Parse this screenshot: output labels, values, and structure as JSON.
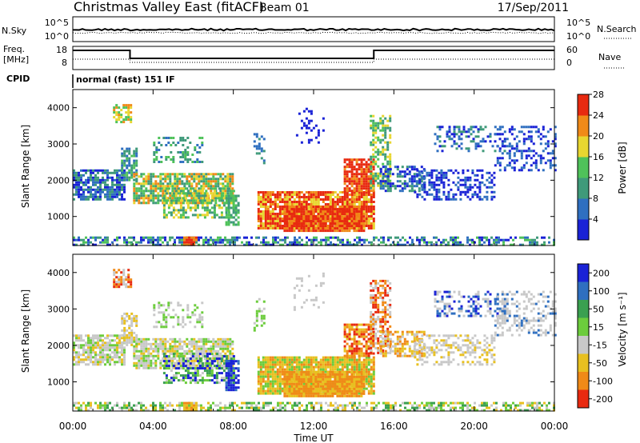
{
  "header": {
    "title": "Christmas Valley East (fitACF)",
    "beam": "Beam 01",
    "date": "17/Sep/2011"
  },
  "noise_panel": {
    "left_label": "N.Sky",
    "right_label": "N.Search",
    "left_ticks": [
      "10^5",
      "10^0"
    ],
    "right_ticks": [
      "10^5",
      "10^0"
    ]
  },
  "freq_panel": {
    "left_label_1": "Freq.",
    "left_label_2": "[MHz]",
    "right_label": "Nave",
    "left_ticks": [
      "18",
      "8"
    ],
    "right_ticks": [
      "60",
      "0"
    ]
  },
  "cpid": {
    "label": "CPID",
    "text": "normal (fast) 151 IF"
  },
  "chart_data": [
    {
      "type": "heatmap",
      "name": "power",
      "ylabel": "Slant Range [km]",
      "yticks": [
        1000,
        2000,
        3000,
        4000
      ],
      "ylim": [
        200,
        4500
      ],
      "xlim_hours": [
        0,
        24
      ],
      "colorbar_label": "Power [dB]",
      "colorbar_ticks": [
        "4",
        "8",
        "12",
        "16",
        "20",
        "24",
        "28"
      ],
      "colors": [
        "#1a22d6",
        "#2f6fc0",
        "#3f9a7a",
        "#4fc25a",
        "#e8d630",
        "#f08a18",
        "#e82a10"
      ]
    },
    {
      "type": "heatmap",
      "name": "velocity",
      "ylabel": "Slant Range [km]",
      "yticks": [
        1000,
        2000,
        3000,
        4000
      ],
      "ylim": [
        200,
        4500
      ],
      "xlim_hours": [
        0,
        24
      ],
      "colorbar_label": "Velocity [m s⁻¹]",
      "colorbar_ticks": [
        "200",
        "100",
        "50",
        "15",
        "-15",
        "-50",
        "-100",
        "-200"
      ],
      "colors": [
        "#1a22d6",
        "#2f6fc0",
        "#3aa050",
        "#6ccc3c",
        "#c8c8c8",
        "#e8c020",
        "#f08a18",
        "#e82a10"
      ]
    }
  ],
  "xaxis": {
    "ticks": [
      "00:00",
      "04:00",
      "08:00",
      "12:00",
      "16:00",
      "20:00",
      "00:00"
    ],
    "label": "Time UT"
  }
}
